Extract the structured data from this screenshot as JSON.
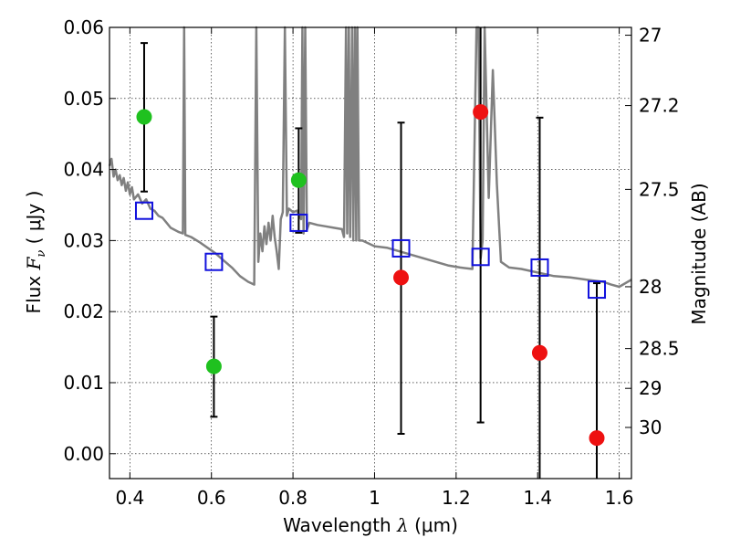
{
  "chart_data": {
    "type": "scatter",
    "xlabel": {
      "prefix": "Wavelength  ",
      "symbol": "λ",
      "unit": " (μm)"
    },
    "ylabel": {
      "prefix": "Flux  ",
      "symbol": "F",
      "subscript": "ν",
      "unit": "  ( μJy )"
    },
    "y2label": "Magnitude (AB)",
    "xlim": [
      0.35,
      1.63
    ],
    "ylim": [
      -0.0035,
      0.06
    ],
    "grid": true,
    "x_ticks": [
      {
        "value": 0.4,
        "label": "0.4"
      },
      {
        "value": 0.6,
        "label": "0.6"
      },
      {
        "value": 0.8,
        "label": "0.8"
      },
      {
        "value": 1.0,
        "label": "1"
      },
      {
        "value": 1.2,
        "label": "1.2"
      },
      {
        "value": 1.4,
        "label": "1.4"
      },
      {
        "value": 1.6,
        "label": "1.6"
      }
    ],
    "y_ticks": [
      {
        "value": 0.0,
        "label": "0.00"
      },
      {
        "value": 0.01,
        "label": "0.01"
      },
      {
        "value": 0.02,
        "label": "0.02"
      },
      {
        "value": 0.03,
        "label": "0.03"
      },
      {
        "value": 0.04,
        "label": "0.04"
      },
      {
        "value": 0.05,
        "label": "0.05"
      },
      {
        "value": 0.06,
        "label": "0.06"
      }
    ],
    "y2_ticks": [
      {
        "flux": 0.0589,
        "label": "27"
      },
      {
        "flux": 0.049,
        "label": "27.2"
      },
      {
        "flux": 0.0372,
        "label": "27.5"
      },
      {
        "flux": 0.0235,
        "label": "28"
      },
      {
        "flux": 0.0148,
        "label": "28.5"
      },
      {
        "flux": 0.0092,
        "label": "29"
      },
      {
        "flux": 0.0037,
        "label": "30"
      }
    ],
    "series": [
      {
        "kind": "detections",
        "color": "#1fc11f",
        "points": [
          {
            "x": 0.435,
            "y": 0.0474,
            "err_lo": 0.0369,
            "err_hi": 0.0578
          },
          {
            "x": 0.606,
            "y": 0.0123,
            "err_lo": 0.0052,
            "err_hi": 0.0193
          },
          {
            "x": 0.814,
            "y": 0.0385,
            "err_lo": 0.0311,
            "err_hi": 0.0458
          }
        ]
      },
      {
        "kind": "non-detections",
        "color": "#ee1111",
        "points": [
          {
            "x": 1.065,
            "y": 0.0248,
            "err_lo": 0.0028,
            "err_hi": 0.0466
          },
          {
            "x": 1.26,
            "y": 0.0481,
            "err_lo": 0.0044,
            "err_hi": 0.06
          },
          {
            "x": 1.405,
            "y": 0.0142,
            "err_lo": -0.0035,
            "err_hi": 0.0473
          },
          {
            "x": 1.545,
            "y": 0.0022,
            "err_lo": -0.0035,
            "err_hi": 0.024
          }
        ]
      },
      {
        "kind": "model photometry",
        "color": "#1111dd",
        "points": [
          {
            "x": 0.435,
            "y": 0.0342
          },
          {
            "x": 0.606,
            "y": 0.027
          },
          {
            "x": 0.814,
            "y": 0.0325
          },
          {
            "x": 1.065,
            "y": 0.0289
          },
          {
            "x": 1.26,
            "y": 0.0277
          },
          {
            "x": 1.405,
            "y": 0.0262
          },
          {
            "x": 1.545,
            "y": 0.0231
          }
        ]
      },
      {
        "kind": "model spectrum",
        "color": "#808080",
        "points": [
          [
            0.35,
            0.0405
          ],
          [
            0.355,
            0.0415
          ],
          [
            0.36,
            0.039
          ],
          [
            0.365,
            0.04
          ],
          [
            0.37,
            0.0385
          ],
          [
            0.375,
            0.0392
          ],
          [
            0.38,
            0.0378
          ],
          [
            0.385,
            0.0388
          ],
          [
            0.39,
            0.037
          ],
          [
            0.395,
            0.0382
          ],
          [
            0.4,
            0.0365
          ],
          [
            0.405,
            0.0375
          ],
          [
            0.41,
            0.0358
          ],
          [
            0.42,
            0.0365
          ],
          [
            0.43,
            0.0352
          ],
          [
            0.44,
            0.0358
          ],
          [
            0.45,
            0.0345
          ],
          [
            0.46,
            0.0342
          ],
          [
            0.47,
            0.0335
          ],
          [
            0.48,
            0.0332
          ],
          [
            0.49,
            0.0325
          ],
          [
            0.5,
            0.0318
          ],
          [
            0.51,
            0.0315
          ],
          [
            0.52,
            0.0312
          ],
          [
            0.53,
            0.031
          ],
          [
            0.533,
            0.06
          ],
          [
            0.536,
            0.0308
          ],
          [
            0.55,
            0.0305
          ],
          [
            0.57,
            0.0298
          ],
          [
            0.59,
            0.029
          ],
          [
            0.61,
            0.0282
          ],
          [
            0.63,
            0.0272
          ],
          [
            0.65,
            0.0262
          ],
          [
            0.67,
            0.025
          ],
          [
            0.69,
            0.0242
          ],
          [
            0.705,
            0.0238
          ],
          [
            0.71,
            0.06
          ],
          [
            0.715,
            0.027
          ],
          [
            0.72,
            0.031
          ],
          [
            0.725,
            0.0285
          ],
          [
            0.73,
            0.032
          ],
          [
            0.735,
            0.0295
          ],
          [
            0.74,
            0.0325
          ],
          [
            0.745,
            0.03
          ],
          [
            0.75,
            0.0335
          ],
          [
            0.755,
            0.0305
          ],
          [
            0.76,
            0.0285
          ],
          [
            0.765,
            0.026
          ],
          [
            0.77,
            0.033
          ],
          [
            0.775,
            0.034
          ],
          [
            0.78,
            0.06
          ],
          [
            0.785,
            0.0335
          ],
          [
            0.79,
            0.0345
          ],
          [
            0.8,
            0.034
          ],
          [
            0.81,
            0.0342
          ],
          [
            0.82,
            0.033
          ],
          [
            0.823,
            0.06
          ],
          [
            0.826,
            0.031
          ],
          [
            0.83,
            0.06
          ],
          [
            0.834,
            0.0315
          ],
          [
            0.84,
            0.0325
          ],
          [
            0.86,
            0.0322
          ],
          [
            0.88,
            0.032
          ],
          [
            0.9,
            0.0318
          ],
          [
            0.92,
            0.0316
          ],
          [
            0.925,
            0.0305
          ],
          [
            0.93,
            0.06
          ],
          [
            0.933,
            0.031
          ],
          [
            0.937,
            0.06
          ],
          [
            0.94,
            0.0305
          ],
          [
            0.945,
            0.06
          ],
          [
            0.948,
            0.03
          ],
          [
            0.952,
            0.06
          ],
          [
            0.955,
            0.03
          ],
          [
            0.958,
            0.06
          ],
          [
            0.962,
            0.03
          ],
          [
            0.97,
            0.03
          ],
          [
            1.0,
            0.0292
          ],
          [
            1.03,
            0.029
          ],
          [
            1.06,
            0.0285
          ],
          [
            1.09,
            0.028
          ],
          [
            1.12,
            0.0275
          ],
          [
            1.15,
            0.027
          ],
          [
            1.18,
            0.0265
          ],
          [
            1.21,
            0.0262
          ],
          [
            1.24,
            0.026
          ],
          [
            1.25,
            0.06
          ],
          [
            1.255,
            0.06
          ],
          [
            1.26,
            0.0275
          ],
          [
            1.265,
            0.03
          ],
          [
            1.27,
            0.06
          ],
          [
            1.28,
            0.036
          ],
          [
            1.29,
            0.054
          ],
          [
            1.3,
            0.038
          ],
          [
            1.31,
            0.027
          ],
          [
            1.33,
            0.0262
          ],
          [
            1.36,
            0.026
          ],
          [
            1.4,
            0.0255
          ],
          [
            1.44,
            0.025
          ],
          [
            1.48,
            0.0248
          ],
          [
            1.52,
            0.0245
          ],
          [
            1.56,
            0.0242
          ],
          [
            1.58,
            0.0238
          ],
          [
            1.6,
            0.0235
          ],
          [
            1.63,
            0.0245
          ]
        ]
      }
    ]
  }
}
